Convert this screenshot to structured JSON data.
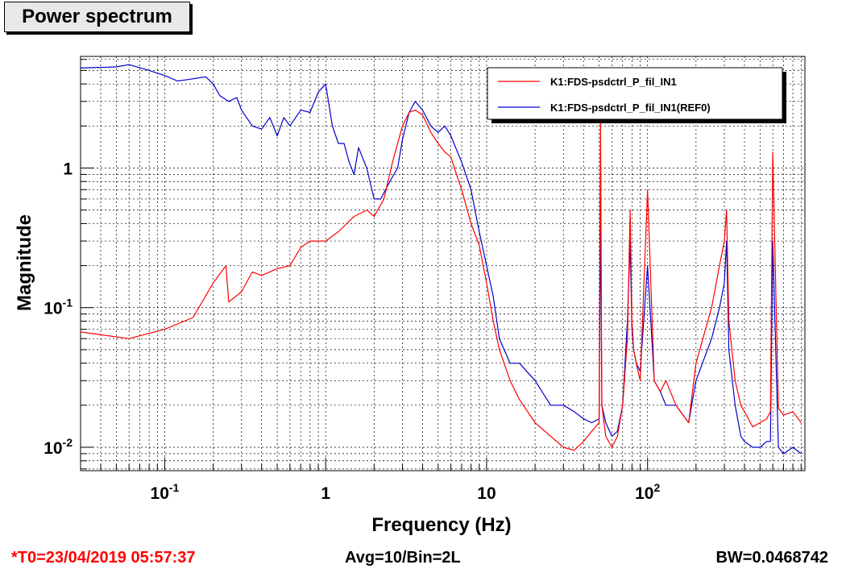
{
  "window": {
    "title": "Power spectrum"
  },
  "status": {
    "t0": "*T0=23/04/2019 05:57:37",
    "avg": "Avg=10/Bin=2L",
    "bw": "BW=0.0468742"
  },
  "colors": {
    "series_red": "#ff0000",
    "series_blue": "#0000cc",
    "t0_text": "#ff0000"
  },
  "chart_data": {
    "type": "line",
    "title": "Power spectrum",
    "xlabel": "Frequency (Hz)",
    "ylabel": "Magnitude",
    "xscale": "log",
    "yscale": "log",
    "xlim": [
      0.03,
      950
    ],
    "ylim": [
      0.0068,
      6.3
    ],
    "grid": true,
    "legend": "top-right",
    "x_ticks": [
      {
        "value": 0.1,
        "base": "10",
        "exp": "-1"
      },
      {
        "value": 1,
        "base": "1",
        "exp": ""
      },
      {
        "value": 10,
        "base": "10",
        "exp": ""
      },
      {
        "value": 100,
        "base": "10",
        "exp": "2"
      }
    ],
    "y_ticks": [
      {
        "value": 0.01,
        "base": "10",
        "exp": "-2"
      },
      {
        "value": 0.1,
        "base": "10",
        "exp": "-1"
      },
      {
        "value": 1,
        "base": "1",
        "exp": ""
      }
    ],
    "series": [
      {
        "name": "K1:FDS-psdctrl_P_fil_IN1",
        "color": "#ff0000",
        "x": [
          0.03,
          0.06,
          0.1,
          0.15,
          0.2,
          0.24,
          0.25,
          0.3,
          0.35,
          0.4,
          0.5,
          0.6,
          0.7,
          0.8,
          1,
          1.2,
          1.5,
          1.8,
          2,
          2.3,
          2.6,
          3,
          3.3,
          3.6,
          4,
          4.5,
          5,
          5.5,
          6,
          6.5,
          7,
          8,
          9,
          10,
          11,
          12,
          14,
          16,
          20,
          25,
          30,
          35,
          40,
          45,
          50,
          51,
          52,
          55,
          60,
          65,
          70,
          75,
          78,
          80,
          82,
          85,
          90,
          100,
          110,
          120,
          130,
          150,
          180,
          200,
          250,
          280,
          300,
          310,
          320,
          350,
          380,
          400,
          450,
          500,
          550,
          580,
          600,
          650,
          700,
          800,
          900
        ],
        "y": [
          0.067,
          0.06,
          0.07,
          0.085,
          0.15,
          0.2,
          0.11,
          0.13,
          0.18,
          0.17,
          0.19,
          0.2,
          0.27,
          0.3,
          0.3,
          0.35,
          0.45,
          0.5,
          0.45,
          0.6,
          1.1,
          2.0,
          2.5,
          2.6,
          2.4,
          1.8,
          1.5,
          1.3,
          1.2,
          0.9,
          0.7,
          0.4,
          0.28,
          0.15,
          0.08,
          0.05,
          0.03,
          0.022,
          0.015,
          0.012,
          0.01,
          0.0095,
          0.011,
          0.013,
          0.015,
          2.5,
          0.02,
          0.012,
          0.01,
          0.012,
          0.02,
          0.06,
          0.5,
          0.08,
          0.05,
          0.04,
          0.03,
          0.7,
          0.03,
          0.025,
          0.03,
          0.02,
          0.015,
          0.04,
          0.1,
          0.2,
          0.3,
          0.5,
          0.08,
          0.03,
          0.02,
          0.018,
          0.014,
          0.015,
          0.016,
          0.018,
          1.3,
          0.019,
          0.017,
          0.018,
          0.015
        ]
      },
      {
        "name": "K1:FDS-psdctrl_P_fil_IN1(REF0)",
        "color": "#0000cc",
        "x": [
          0.03,
          0.05,
          0.06,
          0.08,
          0.1,
          0.12,
          0.14,
          0.18,
          0.2,
          0.22,
          0.25,
          0.28,
          0.3,
          0.35,
          0.4,
          0.45,
          0.5,
          0.55,
          0.6,
          0.7,
          0.8,
          0.9,
          1,
          1.1,
          1.2,
          1.3,
          1.4,
          1.5,
          1.6,
          1.8,
          2,
          2.2,
          2.5,
          2.8,
          3,
          3.3,
          3.6,
          4,
          4.5,
          5,
          5.5,
          6,
          7,
          8,
          9,
          10,
          11,
          12,
          14,
          16,
          20,
          25,
          30,
          35,
          40,
          45,
          50,
          51,
          52,
          55,
          60,
          65,
          70,
          75,
          78,
          80,
          82,
          85,
          90,
          100,
          110,
          120,
          130,
          150,
          180,
          200,
          250,
          280,
          300,
          310,
          320,
          350,
          380,
          400,
          450,
          500,
          550,
          580,
          600,
          650,
          700,
          800,
          900
        ],
        "y": [
          5.2,
          5.3,
          5.5,
          5.0,
          4.6,
          4.2,
          4.3,
          4.5,
          4.0,
          3.3,
          3.0,
          3.2,
          2.6,
          2.0,
          1.9,
          2.3,
          1.7,
          2.3,
          2.0,
          2.6,
          2.5,
          3.5,
          4.0,
          2.0,
          1.5,
          1.5,
          1.1,
          0.9,
          1.4,
          1.0,
          0.6,
          0.6,
          0.8,
          1.0,
          1.6,
          2.5,
          3.0,
          2.6,
          2.0,
          1.8,
          2.0,
          1.7,
          1.1,
          0.7,
          0.35,
          0.2,
          0.12,
          0.06,
          0.04,
          0.04,
          0.03,
          0.02,
          0.02,
          0.018,
          0.016,
          0.015,
          0.016,
          0.5,
          0.02,
          0.015,
          0.012,
          0.013,
          0.02,
          0.08,
          0.3,
          0.07,
          0.05,
          0.04,
          0.035,
          0.2,
          0.03,
          0.025,
          0.02,
          0.02,
          0.015,
          0.03,
          0.06,
          0.1,
          0.15,
          0.3,
          0.05,
          0.02,
          0.012,
          0.011,
          0.01,
          0.01,
          0.011,
          0.011,
          0.3,
          0.01,
          0.009,
          0.01,
          0.009
        ]
      }
    ]
  }
}
